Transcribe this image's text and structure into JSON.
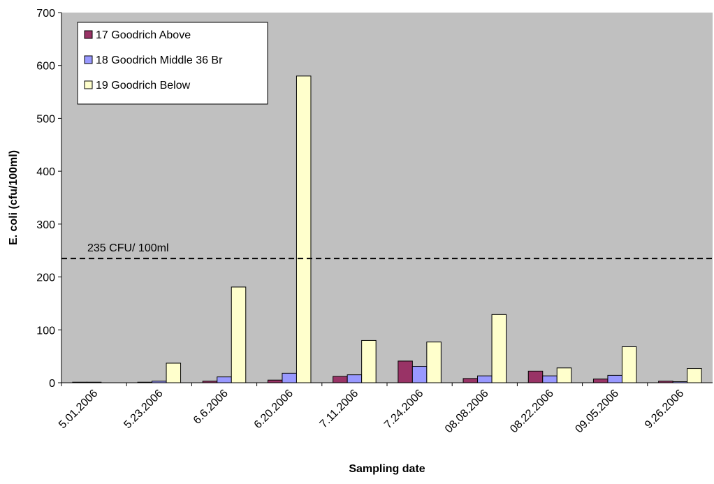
{
  "chart_data": {
    "type": "bar",
    "y_label": "E. coli (cfu/100ml)",
    "x_label": "Sampling date",
    "categories": [
      "5.01.2006",
      "5.23.2006",
      "6.6.2006",
      "6.20.2006",
      "7.11.2006",
      "7.24.2006",
      "08.08.2006",
      "08.22.2006",
      "09.05.2006",
      "9.26.2006"
    ],
    "series": [
      {
        "name": "17 Goodrich Above",
        "color": "#993366",
        "values": [
          1,
          1,
          3,
          5,
          12,
          41,
          8,
          22,
          7,
          3
        ]
      },
      {
        "name": "18 Goodrich Middle 36 Br",
        "color": "#9999ff",
        "values": [
          1,
          3,
          11,
          18,
          15,
          31,
          13,
          13,
          14,
          2
        ]
      },
      {
        "name": "19 Goodrich Below",
        "color": "#ffffcc",
        "values": [
          null,
          37,
          181,
          580,
          80,
          77,
          129,
          28,
          68,
          27
        ]
      }
    ],
    "reference": {
      "value": 235,
      "label": "235 CFU/ 100ml"
    },
    "ylim": [
      0,
      700
    ],
    "yticks": [
      0,
      100,
      200,
      300,
      400,
      500,
      600,
      700
    ],
    "legend": "top-left"
  }
}
